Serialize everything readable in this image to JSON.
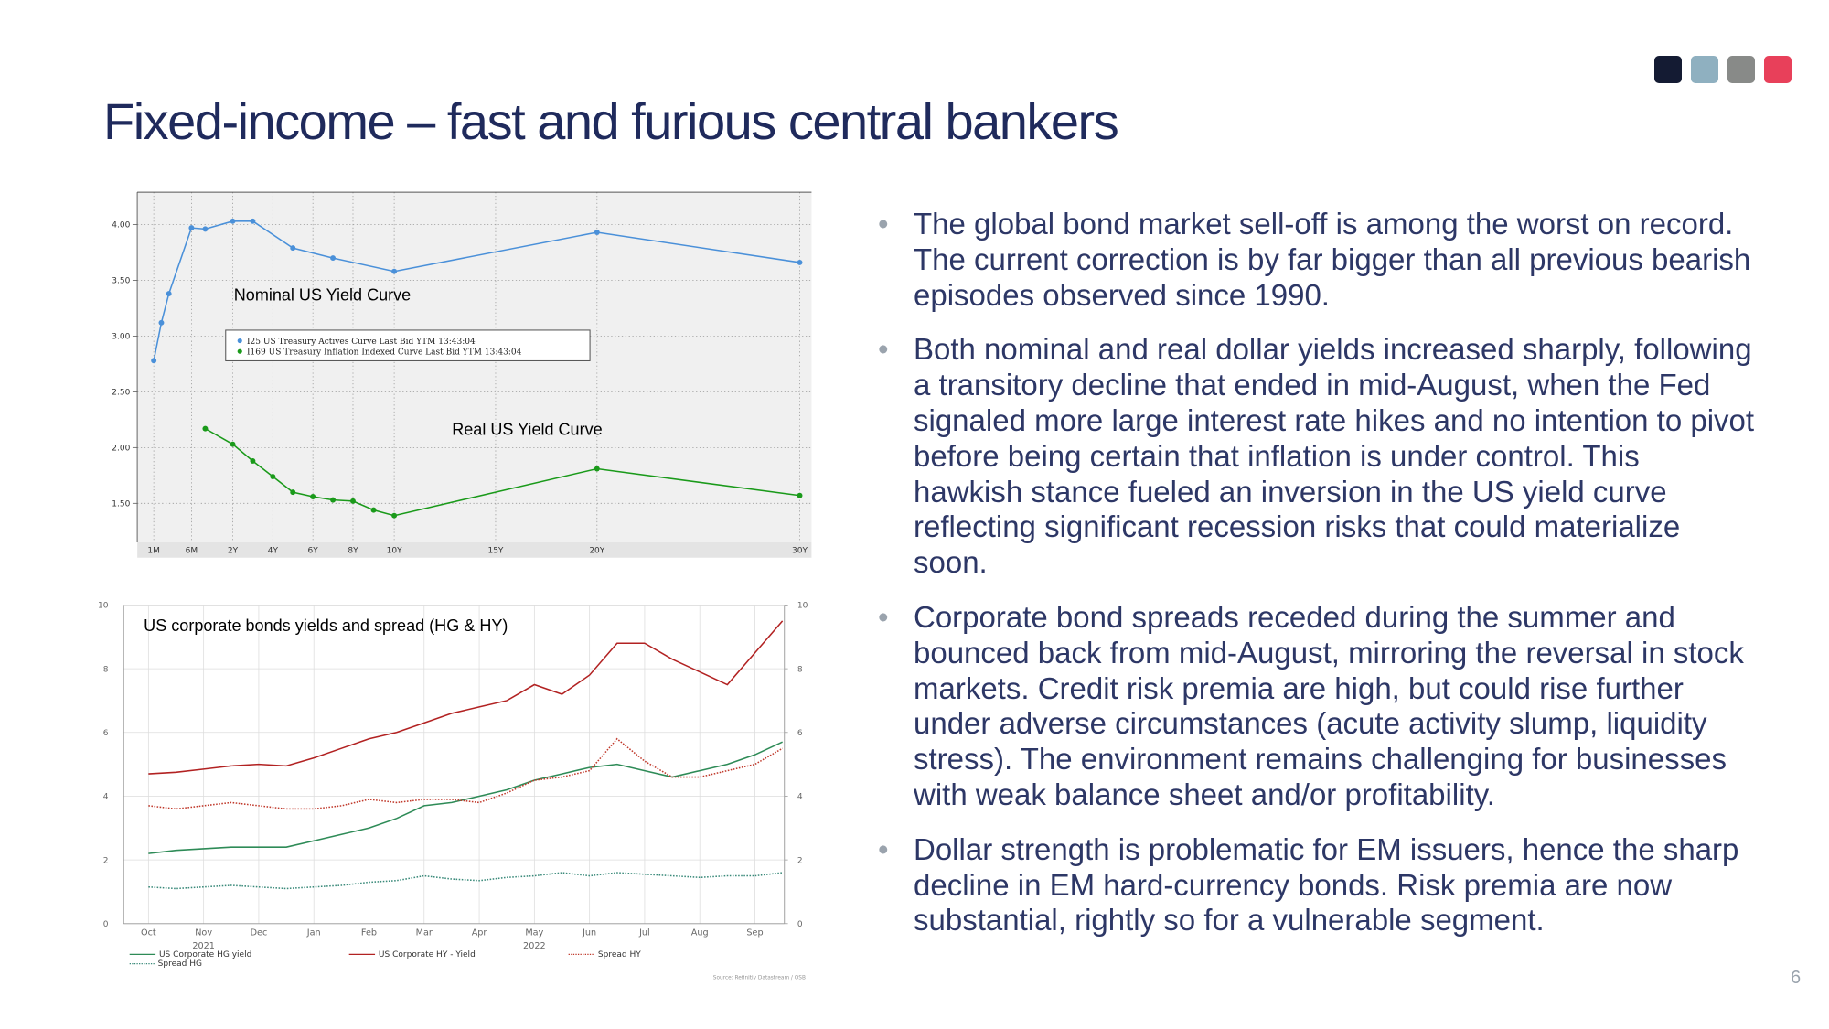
{
  "title": "Fixed-income – fast and furious central bankers",
  "bullets": [
    "The global bond market sell-off is among the worst on record. The current correction is by far bigger than all previous bearish episodes observed since 1990.",
    "Both nominal and real dollar yields increased sharply, following a transitory decline that ended in mid-August, when the Fed signaled more large interest rate hikes and no intention to pivot before being certain that inflation is under control. This hawkish stance fueled an inversion in the US yield curve reflecting significant recession risks that could materialize soon.",
    "Corporate bond spreads receded during the summer and bounced back from mid-August, mirroring the reversal in stock markets. Credit risk premia are high, but could rise further under adverse circumstances (acute activity slump, liquidity stress). The environment remains challenging for businesses with weak balance sheet and/or profitability.",
    "Dollar strength is problematic for EM issuers, hence the sharp decline in EM hard-currency bonds. Risk premia are now substantial, rightly so for a vulnerable segment."
  ],
  "page_number": "6",
  "chart_data": [
    {
      "type": "line",
      "annotations": [
        "Nominal US Yield Curve",
        "Real US Yield Curve"
      ],
      "series": [
        {
          "name": "I25 US Treasury Actives Curve Last Bid YTM 13:43:04",
          "color": "#4a90d9",
          "x": [
            0.083,
            0.167,
            0.25,
            0.5,
            1,
            2,
            3,
            5,
            7,
            10,
            20,
            30
          ],
          "values": [
            2.78,
            3.12,
            3.38,
            3.97,
            3.96,
            4.03,
            4.03,
            3.79,
            3.7,
            3.58,
            3.93,
            3.66
          ]
        },
        {
          "name": "I169 US Treasury Inflation Indexed Curve Last Bid YTM 13:43:04",
          "color": "#1a9a1a",
          "x": [
            1,
            2,
            3,
            4,
            5,
            6,
            7,
            8,
            9,
            10,
            20,
            30
          ],
          "values": [
            2.17,
            2.03,
            1.88,
            1.74,
            1.6,
            1.56,
            1.53,
            1.52,
            1.44,
            1.39,
            1.81,
            1.57
          ]
        }
      ],
      "xticks": [
        {
          "value": 0.083,
          "label": "1M"
        },
        {
          "value": 0.5,
          "label": "6M"
        },
        {
          "value": 2,
          "label": "2Y"
        },
        {
          "value": 4,
          "label": "4Y"
        },
        {
          "value": 6,
          "label": "6Y"
        },
        {
          "value": 8,
          "label": "8Y"
        },
        {
          "value": 10,
          "label": "10Y"
        },
        {
          "value": 15,
          "label": "15Y"
        },
        {
          "value": 20,
          "label": "20Y"
        },
        {
          "value": 30,
          "label": "30Y"
        }
      ],
      "ylim": [
        1.15,
        4.29
      ],
      "yticks": [
        {
          "value": 1.5,
          "label": "1.50"
        },
        {
          "value": 2,
          "label": "2.00"
        },
        {
          "value": 2.5,
          "label": "2.50"
        },
        {
          "value": 3,
          "label": "3.00"
        },
        {
          "value": 3.5,
          "label": "3.50"
        },
        {
          "value": 4,
          "label": "4.00"
        }
      ],
      "grid": true
    },
    {
      "type": "line",
      "title": "US corporate bonds yields and spread (HG & HY)",
      "categories": [
        "Oct",
        null,
        "Nov",
        null,
        "Dec",
        null,
        "Jan",
        null,
        "Feb",
        null,
        "Mar",
        null,
        "Apr",
        null,
        "May",
        null,
        "Jun",
        null,
        "Jul",
        null,
        "Aug",
        null,
        "Sep",
        null
      ],
      "x_sublabels": [
        "2021",
        "2022"
      ],
      "series": [
        {
          "name": "US Corporate HG yield",
          "color": "#2e8b57",
          "dash": false,
          "values": [
            2.2,
            2.3,
            2.35,
            2.4,
            2.4,
            2.4,
            2.6,
            2.8,
            3.0,
            3.3,
            3.7,
            3.8,
            4.0,
            4.2,
            4.5,
            4.7,
            4.9,
            5.0,
            4.8,
            4.6,
            4.8,
            5.0,
            5.3,
            5.7
          ]
        },
        {
          "name": "US Corporate HY - Yield",
          "color": "#b22222",
          "dash": false,
          "values": [
            4.7,
            4.75,
            4.85,
            4.95,
            5.0,
            4.95,
            5.2,
            5.5,
            5.8,
            6.0,
            6.3,
            6.6,
            6.8,
            7.0,
            7.5,
            7.2,
            7.8,
            8.8,
            8.8,
            8.3,
            7.9,
            7.5,
            8.5,
            9.5
          ]
        },
        {
          "name": "Spread HY",
          "color": "#c0392b",
          "dash": true,
          "values": [
            3.7,
            3.6,
            3.7,
            3.8,
            3.7,
            3.6,
            3.6,
            3.7,
            3.9,
            3.8,
            3.9,
            3.9,
            3.8,
            4.1,
            4.5,
            4.6,
            4.8,
            5.8,
            5.1,
            4.6,
            4.6,
            4.8,
            5.0,
            5.5
          ]
        },
        {
          "name": "Spread HG",
          "color": "#3a8a7a",
          "dash": true,
          "values": [
            1.15,
            1.1,
            1.15,
            1.2,
            1.15,
            1.1,
            1.15,
            1.2,
            1.3,
            1.35,
            1.5,
            1.4,
            1.35,
            1.45,
            1.5,
            1.6,
            1.5,
            1.6,
            1.55,
            1.5,
            1.45,
            1.5,
            1.5,
            1.6
          ]
        }
      ],
      "ylim": [
        0,
        10
      ],
      "yticks": [
        0,
        2,
        4,
        6,
        8,
        10
      ],
      "y2lim": [
        0,
        10
      ],
      "y2ticks": [
        0,
        2,
        4,
        6,
        8,
        10
      ],
      "grid": true,
      "source": "Source: Refinitiv Datastream / OSB"
    }
  ]
}
